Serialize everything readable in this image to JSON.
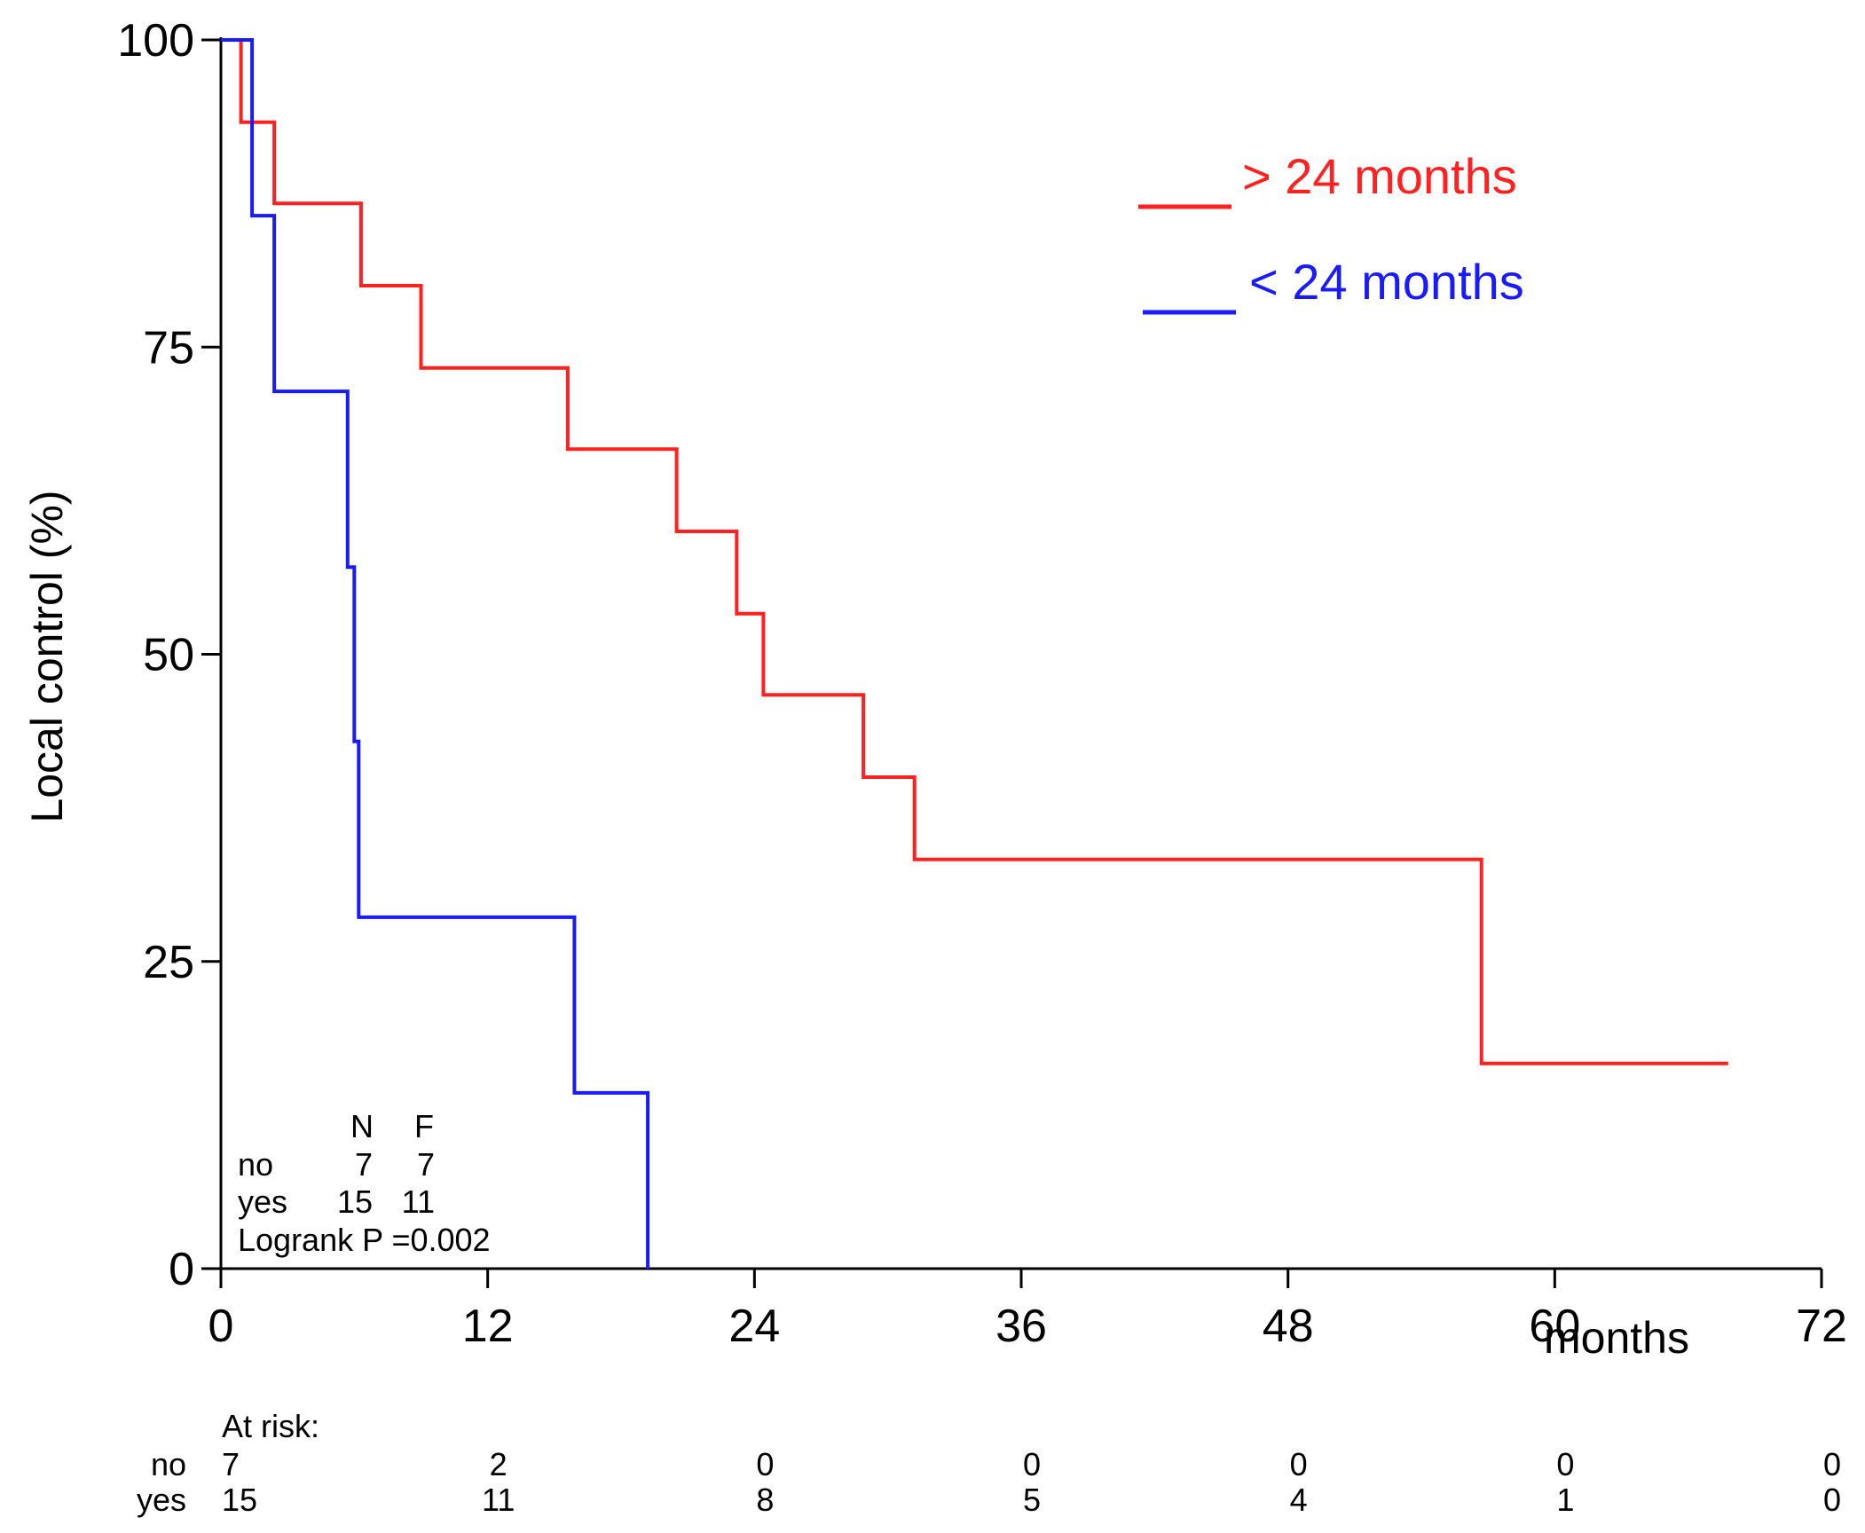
{
  "chart_data": {
    "type": "line",
    "subtype": "kaplan-meier-step",
    "title": "",
    "xlabel": "months",
    "ylabel": "Local control (%)",
    "xlim": [
      0,
      72
    ],
    "ylim": [
      0,
      100
    ],
    "x_ticks": [
      0,
      12,
      24,
      36,
      48,
      60,
      72
    ],
    "y_ticks": [
      0,
      25,
      50,
      75,
      100
    ],
    "grid": false,
    "legend_position": "top-right",
    "series": [
      {
        "name": "> 24 months",
        "color": "#ff2020",
        "points": [
          [
            0,
            100
          ],
          [
            0.9,
            100
          ],
          [
            0.9,
            93.3
          ],
          [
            2.4,
            93.3
          ],
          [
            2.4,
            86.7
          ],
          [
            6.3,
            86.7
          ],
          [
            6.3,
            80.0
          ],
          [
            9.0,
            80.0
          ],
          [
            9.0,
            73.3
          ],
          [
            15.6,
            73.3
          ],
          [
            15.6,
            66.7
          ],
          [
            20.5,
            66.7
          ],
          [
            20.5,
            60.0
          ],
          [
            23.2,
            60.0
          ],
          [
            23.2,
            53.3
          ],
          [
            24.4,
            53.3
          ],
          [
            24.4,
            46.7
          ],
          [
            28.9,
            46.7
          ],
          [
            28.9,
            40.0
          ],
          [
            31.2,
            40.0
          ],
          [
            31.2,
            33.3
          ],
          [
            56.7,
            33.3
          ],
          [
            56.7,
            16.7
          ],
          [
            67.8,
            16.7
          ]
        ]
      },
      {
        "name": "< 24 months",
        "color": "#1a1aff",
        "points": [
          [
            0,
            100
          ],
          [
            1.4,
            100
          ],
          [
            1.4,
            85.7
          ],
          [
            2.4,
            85.7
          ],
          [
            2.4,
            71.4
          ],
          [
            5.7,
            71.4
          ],
          [
            5.7,
            57.1
          ],
          [
            6.0,
            57.1
          ],
          [
            6.0,
            42.9
          ],
          [
            6.2,
            42.9
          ],
          [
            6.2,
            28.6
          ],
          [
            15.9,
            28.6
          ],
          [
            15.9,
            14.3
          ],
          [
            19.2,
            14.3
          ],
          [
            19.2,
            0
          ]
        ]
      }
    ],
    "stats": {
      "header": [
        "N",
        "F"
      ],
      "rows": [
        {
          "label": "no",
          "n": "7",
          "f": "7"
        },
        {
          "label": "yes",
          "n": "15",
          "f": "11"
        }
      ],
      "logrank": "Logrank P =0.002"
    },
    "at_risk": {
      "title": "At risk:",
      "rows": [
        {
          "label": "no",
          "values": [
            "7",
            "2",
            "0",
            "0",
            "0",
            "0",
            "0"
          ]
        },
        {
          "label": "yes",
          "values": [
            "15",
            "11",
            "8",
            "5",
            "4",
            "1",
            "0"
          ]
        }
      ]
    }
  }
}
